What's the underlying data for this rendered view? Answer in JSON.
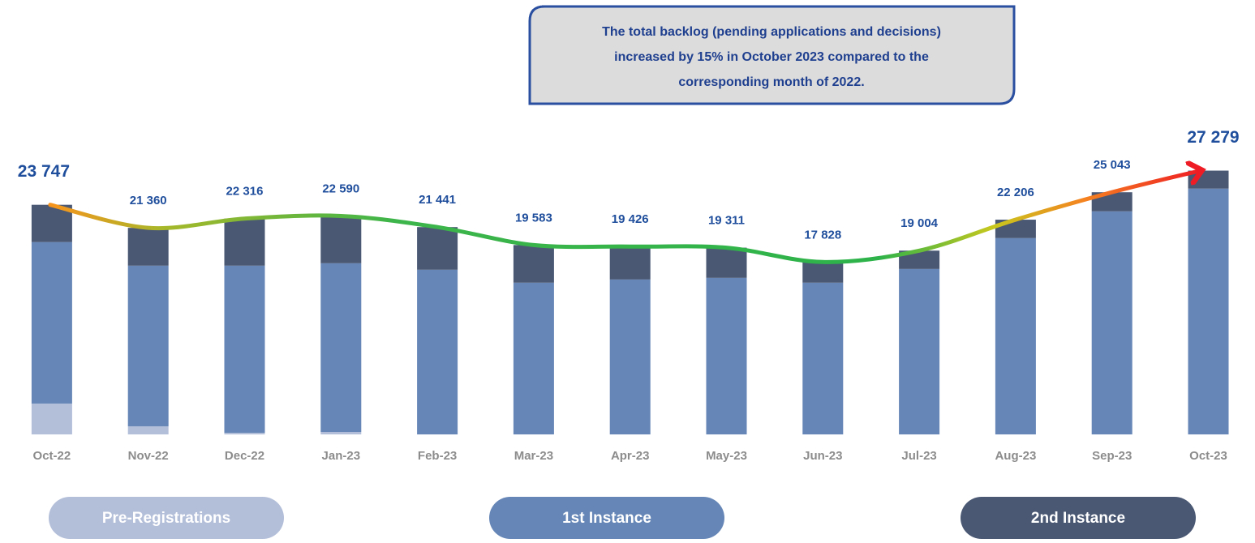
{
  "chart_data": {
    "type": "stacked_bar",
    "annotation": [
      "The total backlog (pending applications and decisions)",
      "increased by 15% in October 2023 compared to the",
      "corresponding  month of 2022."
    ],
    "categories": [
      "Oct-22",
      "Nov-22",
      "Dec-22",
      "Jan-23",
      "Feb-23",
      "Mar-23",
      "Apr-23",
      "May-23",
      "Jun-23",
      "Jul-23",
      "Aug-23",
      "Sep-23",
      "Oct-23"
    ],
    "series": [
      {
        "name": "Pre-Registrations",
        "color": "#b3bed9",
        "values": [
          3190,
          840,
          170,
          250,
          0,
          0,
          0,
          0,
          0,
          0,
          0,
          0,
          0
        ]
      },
      {
        "name": "1st Instance",
        "color": "#6586b6",
        "values": [
          16700,
          16610,
          17280,
          17450,
          17030,
          15690,
          16020,
          16190,
          15690,
          17110,
          20300,
          23070,
          25420
        ]
      },
      {
        "name": "2nd Instance",
        "color": "#4a5874",
        "values": [
          3857,
          3910,
          4866,
          4890,
          4411,
          3893,
          3406,
          3121,
          2138,
          1894,
          1906,
          1973,
          1859
        ]
      }
    ],
    "totals": [
      23747,
      21360,
      22316,
      22590,
      21441,
      19583,
      19426,
      19311,
      17828,
      19004,
      22206,
      25043,
      27279
    ],
    "total_labels": [
      "23 747",
      "21 360",
      "22 316",
      "22 590",
      "21 441",
      "19 583",
      "19 426",
      "19 311",
      "17 828",
      "19 004",
      "22 206",
      "25 043",
      "27 279"
    ],
    "ylim": [
      0,
      29000
    ]
  }
}
